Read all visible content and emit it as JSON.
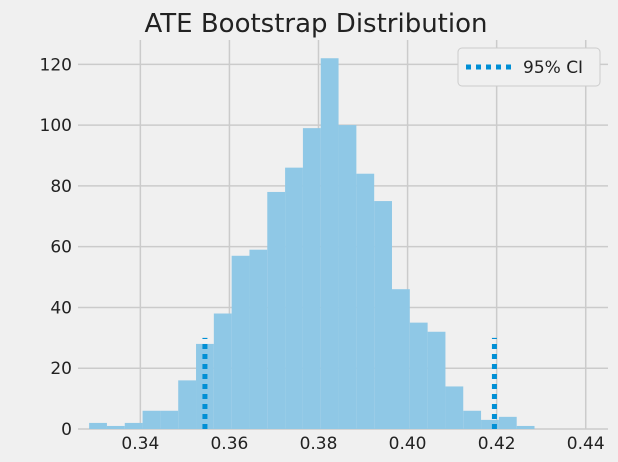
{
  "chart_data": {
    "type": "bar",
    "title": "ATE Bootstrap Distribution",
    "xlabel": "",
    "ylabel": "",
    "xlim": [
      0.326,
      0.445
    ],
    "ylim": [
      0,
      128
    ],
    "x_ticks": [
      0.34,
      0.36,
      0.38,
      0.4,
      0.42,
      0.44
    ],
    "x_tick_labels": [
      "0.34",
      "0.36",
      "0.38",
      "0.40",
      "0.42",
      "0.44"
    ],
    "y_ticks": [
      0,
      20,
      40,
      60,
      80,
      100,
      120
    ],
    "y_tick_labels": [
      "0",
      "20",
      "40",
      "60",
      "80",
      "100",
      "120"
    ],
    "grid": true,
    "legend_position": "top-right",
    "bin_edges": [
      0.3285,
      0.3325,
      0.3365,
      0.3405,
      0.3445,
      0.3485,
      0.3525,
      0.3565,
      0.3605,
      0.3645,
      0.3685,
      0.3725,
      0.3765,
      0.3805,
      0.3845,
      0.3885,
      0.3925,
      0.3965,
      0.4005,
      0.4045,
      0.4085,
      0.4125,
      0.4165,
      0.4205,
      0.4245,
      0.4285,
      0.4325,
      0.4365,
      0.4405
    ],
    "counts": [
      2,
      1,
      2,
      6,
      6,
      16,
      28,
      38,
      57,
      59,
      78,
      86,
      99,
      122,
      100,
      84,
      75,
      46,
      35,
      32,
      14,
      6,
      3,
      4,
      1,
      0,
      0,
      0
    ],
    "bar_color": "#8fc8e6",
    "ci": {
      "label": "95% CI",
      "lower": 0.3545,
      "upper": 0.4195,
      "height": 30,
      "color": "#008fd5"
    }
  }
}
